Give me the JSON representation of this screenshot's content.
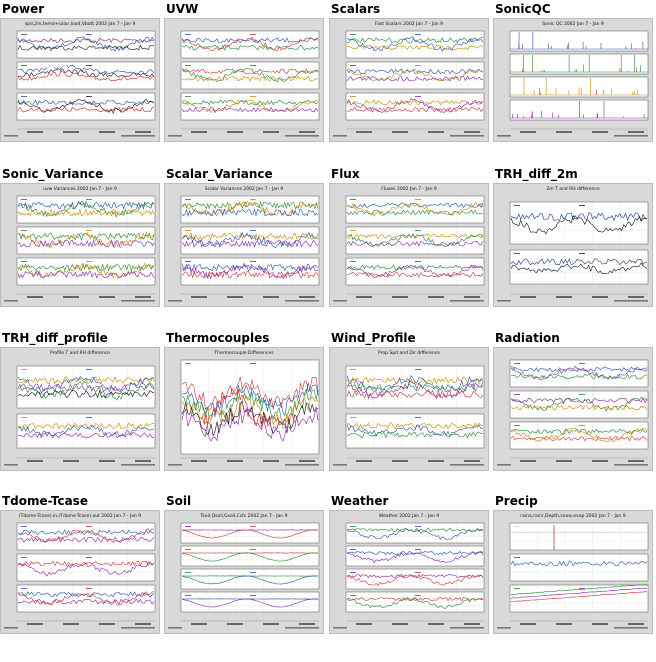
{
  "page": {
    "panels": [
      {
        "id": "power",
        "title": "Power",
        "plot_title": "spd,2m,temd+solar,load,Vbatt 2002 Jan 7 - Jan 9",
        "kind": "stack3",
        "colors": [
          "#7a2a6a",
          "#2a4a9a",
          "#1a1a1a",
          "#cc2222"
        ]
      },
      {
        "id": "uvw",
        "title": "UVW",
        "plot_title": "",
        "kind": "stack3",
        "colors": [
          "#2255aa",
          "#cc3333",
          "#228833",
          "#cc8800",
          "#8822aa"
        ]
      },
      {
        "id": "scalars",
        "title": "Scalars",
        "plot_title": "Fast Scalars 2002 Jan 7 - Jan 9",
        "kind": "stack3",
        "colors": [
          "#228833",
          "#2255aa",
          "#cc8800",
          "#8822aa",
          "#cc3333"
        ]
      },
      {
        "id": "sonicqc",
        "title": "SonicQC",
        "plot_title": "Sonic QC 2002 Jan 7 - Jan 9",
        "kind": "spikes4",
        "colors": [
          "#2255aa",
          "#228833",
          "#cc8800",
          "#8822aa",
          "#cc3333"
        ]
      },
      {
        "id": "sonic_variance",
        "title": "Sonic_Variance",
        "plot_title": "uvw Variances 2002 Jan 7 - Jan 9",
        "kind": "stack3spiky",
        "colors": [
          "#2255aa",
          "#228833",
          "#cc8800",
          "#8822aa"
        ]
      },
      {
        "id": "scalar_variance",
        "title": "Scalar_Variance",
        "plot_title": "Scalar Variances 2002 Jan 7 - Jan 9",
        "kind": "stack3spiky",
        "colors": [
          "#228833",
          "#cc8800",
          "#2255aa",
          "#8822aa",
          "#cc3333"
        ]
      },
      {
        "id": "flux",
        "title": "Flux",
        "plot_title": "Fluxes 2002 Jan 7 - Jan 9",
        "kind": "stack3",
        "colors": [
          "#2255aa",
          "#cc8800",
          "#228833",
          "#8822aa",
          "#cc3333"
        ]
      },
      {
        "id": "trh_diff_2m",
        "title": "TRH_diff_2m",
        "plot_title": "2m T and RH difference",
        "kind": "stack2",
        "colors": [
          "#1a3a7a",
          "#111111"
        ]
      },
      {
        "id": "trh_diff_profile",
        "title": "TRH_diff_profile",
        "plot_title": "Profile T and RH difference",
        "kind": "stack2",
        "colors": [
          "#cc8800",
          "#2255aa",
          "#8822aa",
          "#228833",
          "#111111"
        ]
      },
      {
        "id": "thermocouples",
        "title": "Thermocouples",
        "plot_title": "Thermocouple Differences",
        "kind": "single",
        "colors": [
          "#cc3333",
          "#2255aa",
          "#228833",
          "#cc8800",
          "#111111",
          "#8822aa"
        ]
      },
      {
        "id": "wind_profile",
        "title": "Wind_Profile",
        "plot_title": "Prop Spd and Dir difference",
        "kind": "stack2",
        "colors": [
          "#cc8800",
          "#2255aa",
          "#228833",
          "#8822aa",
          "#cc3333"
        ]
      },
      {
        "id": "radiation",
        "title": "Radiation",
        "plot_title": "",
        "kind": "stack3",
        "colors": [
          "#2255aa",
          "#8822aa",
          "#228833",
          "#cc8800",
          "#cc3333"
        ]
      },
      {
        "id": "tdome_tcase",
        "title": "Tdome-Tcase",
        "plot_title": "(Tdome-Tcase).in,(Tdome-Tcase).out 2002 Jan 7 - Jan 9",
        "kind": "stack3",
        "colors": [
          "#2255aa",
          "#cc3333",
          "#8822aa"
        ]
      },
      {
        "id": "soil",
        "title": "Soil",
        "plot_title": "Tsoil,Qsoil,Gsoil,Csfc 2002 Jan 7 - Jan 9",
        "kind": "stack4smooth",
        "colors": [
          "#8822aa",
          "#cc3333",
          "#228833",
          "#2255aa"
        ]
      },
      {
        "id": "weather",
        "title": "Weather",
        "plot_title": "Weather 2002 Jan 7 - Jan 9",
        "kind": "stack4",
        "colors": [
          "#228833",
          "#2255aa",
          "#8822aa",
          "#cc3333"
        ]
      },
      {
        "id": "precip",
        "title": "Precip",
        "plot_title": "raina,rainr,Depth,snow,evap 2002 Jan 7 - Jan 9",
        "kind": "precip",
        "colors": [
          "#cc3333",
          "#2255aa",
          "#228833",
          "#8822aa"
        ]
      }
    ]
  }
}
